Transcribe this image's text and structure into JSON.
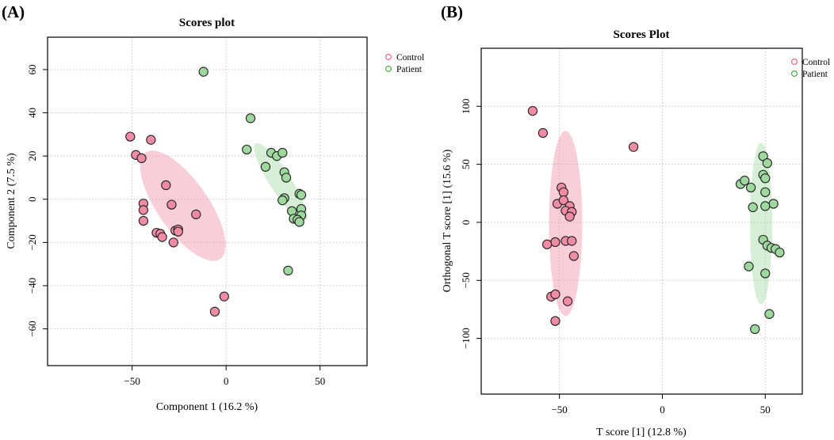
{
  "chart_data": [
    {
      "type": "scatter",
      "panel_label": "(A)",
      "title": "Scores plot",
      "xlabel": "Component 1 (16.2 %)",
      "ylabel": "Component 2 (7.5 %)",
      "xlim": [
        -95,
        75
      ],
      "ylim": [
        -77,
        75
      ],
      "xticks": [
        -50,
        0,
        50
      ],
      "xtick_labels": [
        "−50",
        "0",
        "50"
      ],
      "yticks": [
        -60,
        -40,
        -20,
        0,
        20,
        40,
        60
      ],
      "ytick_labels": [
        "−60",
        "−40",
        "−20",
        "0",
        "20",
        "40",
        "60"
      ],
      "grid": true,
      "legend_position": "top-right",
      "series": [
        {
          "name": "Control",
          "color": "#e8698c",
          "fill": "#ef8ca4",
          "points": [
            [
              -51,
              29
            ],
            [
              -48,
              20.5
            ],
            [
              -45,
              19
            ],
            [
              -40,
              27.5
            ],
            [
              -44,
              -2
            ],
            [
              -44,
              -5
            ],
            [
              -44,
              -10
            ],
            [
              -37,
              -15.5
            ],
            [
              -35,
              -16
            ],
            [
              -34,
              -17.5
            ],
            [
              -32,
              6.5
            ],
            [
              -29,
              -2.5
            ],
            [
              -28,
              -20
            ],
            [
              -27,
              -14.5
            ],
            [
              -25.5,
              -14
            ],
            [
              -25.5,
              -15
            ],
            [
              -16,
              -7
            ],
            [
              -1,
              -45
            ],
            [
              -6,
              -52
            ]
          ],
          "ellipse": {
            "cx": -23,
            "cy": -3,
            "rx": 82,
            "ry": 32,
            "angle": -55
          }
        },
        {
          "name": "Patient",
          "color": "#4fb04f",
          "fill": "#9ed89e",
          "points": [
            [
              -12,
              59
            ],
            [
              13,
              37.5
            ],
            [
              11,
              23
            ],
            [
              24,
              21.5
            ],
            [
              27,
              20
            ],
            [
              30,
              21.5
            ],
            [
              21,
              15
            ],
            [
              31,
              12.5
            ],
            [
              32,
              10
            ],
            [
              31,
              0.5
            ],
            [
              30,
              -0.5
            ],
            [
              39,
              2.5
            ],
            [
              40,
              2
            ],
            [
              35,
              -5.5
            ],
            [
              40,
              -4.5
            ],
            [
              40,
              -7.5
            ],
            [
              36,
              -9
            ],
            [
              38,
              -9.5
            ],
            [
              39,
              -10.5
            ],
            [
              33,
              -33
            ]
          ],
          "ellipse": {
            "cx": 29,
            "cy": 8,
            "rx": 58,
            "ry": 13.5,
            "angle": -57
          }
        }
      ]
    },
    {
      "type": "scatter",
      "panel_label": "(B)",
      "title": "Scores Plot",
      "xlabel": "T score [1] (12.8 %)",
      "ylabel": "Orthogonal T score [1] (15.6 %)",
      "xlim": [
        -88,
        68
      ],
      "ylim": [
        -148,
        150
      ],
      "xticks": [
        -50,
        0,
        50
      ],
      "xtick_labels": [
        "−50",
        "0",
        "50"
      ],
      "yticks": [
        -100,
        -50,
        0,
        50,
        100
      ],
      "ytick_labels": [
        "−100",
        "−50",
        "0",
        "50",
        "100"
      ],
      "grid": true,
      "legend_position": "top-right",
      "series": [
        {
          "name": "Control",
          "color": "#e8698c",
          "fill": "#ef8ca4",
          "points": [
            [
              -63,
              96
            ],
            [
              -58,
              77
            ],
            [
              -14,
              65
            ],
            [
              -49,
              30
            ],
            [
              -48,
              26
            ],
            [
              -51,
              16
            ],
            [
              -48,
              19
            ],
            [
              -45,
              14
            ],
            [
              -47,
              10
            ],
            [
              -44,
              9
            ],
            [
              -45,
              5
            ],
            [
              -52,
              -17
            ],
            [
              -47,
              -16
            ],
            [
              -44,
              -16
            ],
            [
              -56,
              -19
            ],
            [
              -43,
              -29
            ],
            [
              -54,
              -64
            ],
            [
              -52,
              -62
            ],
            [
              -46,
              -68
            ],
            [
              -52,
              -85
            ]
          ],
          "ellipse": {
            "cx": -47,
            "cy": -1,
            "rx": 21,
            "ry": 117,
            "angle": 0
          }
        },
        {
          "name": "Patient",
          "color": "#4fb04f",
          "fill": "#9ed89e",
          "points": [
            [
              49,
              57
            ],
            [
              51,
              51
            ],
            [
              49,
              41
            ],
            [
              50,
              38
            ],
            [
              38,
              33
            ],
            [
              40,
              36
            ],
            [
              43,
              30
            ],
            [
              50,
              26
            ],
            [
              54,
              16
            ],
            [
              50,
              14
            ],
            [
              44,
              13
            ],
            [
              49,
              -15
            ],
            [
              51,
              -20
            ],
            [
              53,
              -22
            ],
            [
              55,
              -23
            ],
            [
              57,
              -26
            ],
            [
              42,
              -38
            ],
            [
              50,
              -44
            ],
            [
              52,
              -79
            ],
            [
              45,
              -92
            ]
          ],
          "ellipse": {
            "cx": 48,
            "cy": -1,
            "rx": 14,
            "ry": 102,
            "angle": 0
          }
        }
      ]
    }
  ]
}
